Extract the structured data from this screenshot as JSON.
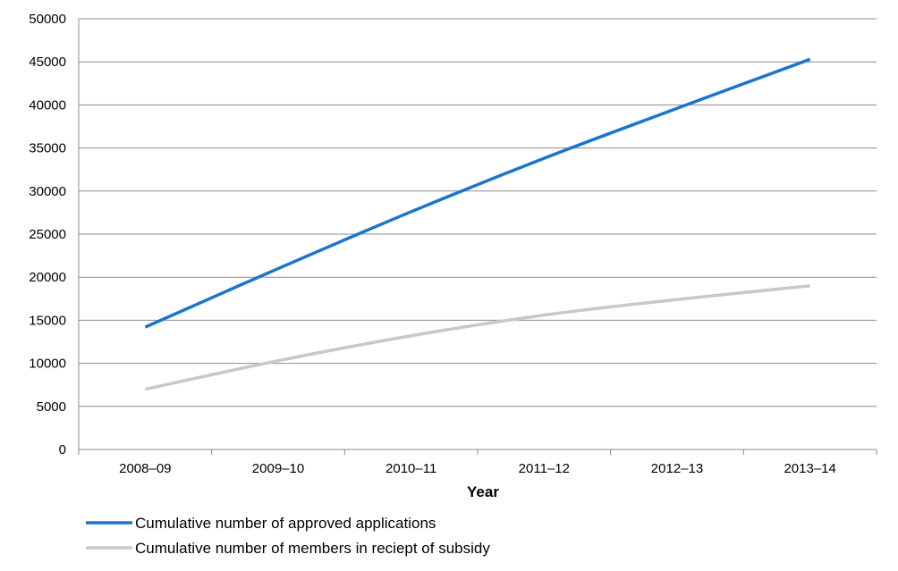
{
  "chart_data": {
    "type": "line",
    "title": "",
    "xlabel": "Year",
    "ylabel": "",
    "categories": [
      "2008–09",
      "2009–10",
      "2010–11",
      "2011–12",
      "2012–13",
      "2013–14"
    ],
    "ylim": [
      0,
      50000
    ],
    "yticks": [
      0,
      5000,
      10000,
      15000,
      20000,
      25000,
      30000,
      35000,
      40000,
      45000,
      50000
    ],
    "grid": true,
    "legend_position": "bottom-left",
    "series": [
      {
        "name": "Cumulative number of approved applications",
        "color": "#1b75cc",
        "values": [
          14200,
          21000,
          27600,
          33800,
          39600,
          45300
        ]
      },
      {
        "name": "Cumulative number of members in reciept of subsidy",
        "color": "#c8c8c8",
        "values": [
          7000,
          10300,
          13200,
          15600,
          17400,
          19000
        ]
      }
    ]
  }
}
